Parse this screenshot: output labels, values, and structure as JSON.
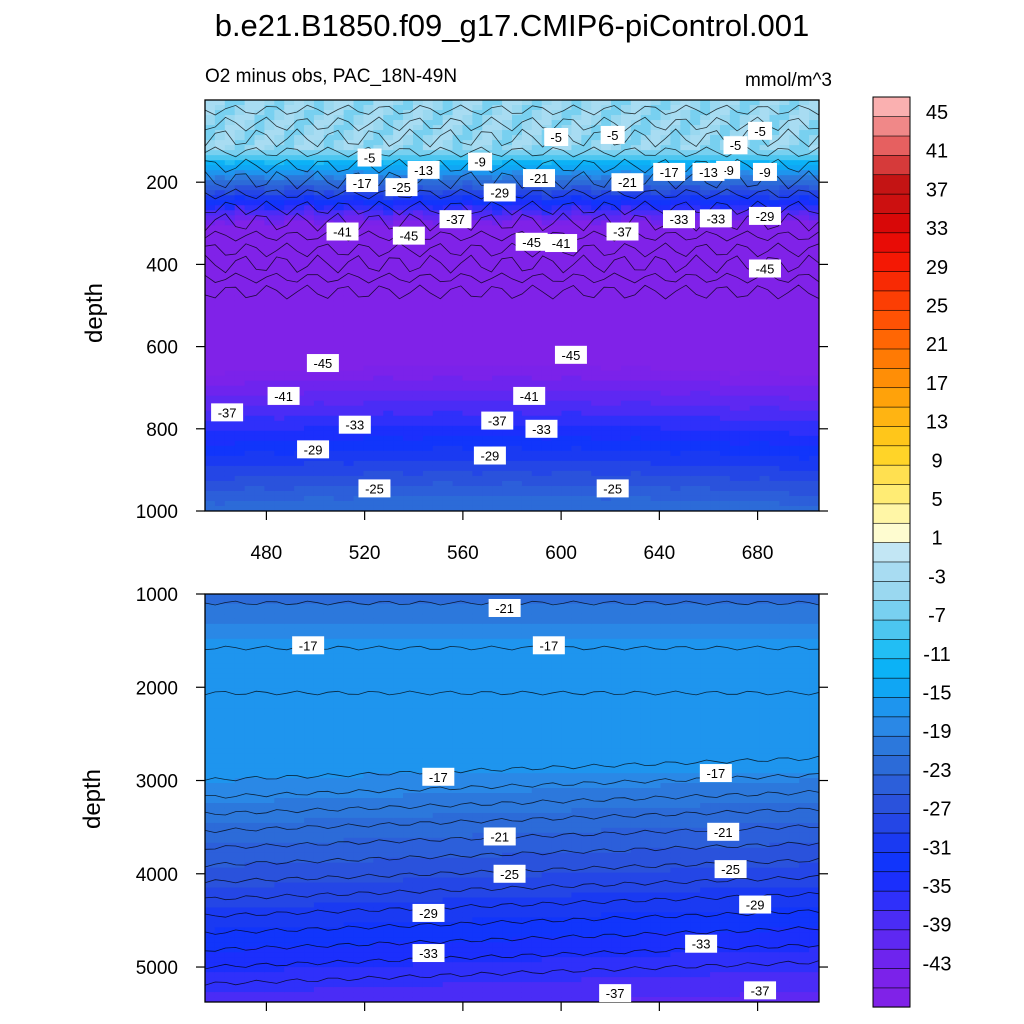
{
  "chart_data": {
    "type": "contour",
    "title": "b.e21.B1850.f09_g17.CMIP6-piControl.001",
    "subtitle_left": "O2 minus obs, PAC_18N-49N",
    "subtitle_right": "mmol/m^3",
    "x_range": [
      455,
      705
    ],
    "x_ticks": [
      480,
      520,
      560,
      600,
      640,
      680
    ],
    "panels": [
      {
        "name": "upper-ocean",
        "ylabel": "depth",
        "y_range": [
          0,
          1000
        ],
        "y_ticks": [
          200,
          400,
          600,
          800,
          1000
        ],
        "contour_labels": [
          {
            "text": "-5",
            "x": 522,
            "y": 140
          },
          {
            "text": "-5",
            "x": 598,
            "y": 90
          },
          {
            "text": "-5",
            "x": 621,
            "y": 85
          },
          {
            "text": "-5",
            "x": 671,
            "y": 110
          },
          {
            "text": "-5",
            "x": 681,
            "y": 75
          },
          {
            "text": "-9",
            "x": 567,
            "y": 150
          },
          {
            "text": "-9",
            "x": 668,
            "y": 170
          },
          {
            "text": "-9",
            "x": 683,
            "y": 175
          },
          {
            "text": "-13",
            "x": 544,
            "y": 170
          },
          {
            "text": "-13",
            "x": 660,
            "y": 175
          },
          {
            "text": "-17",
            "x": 519,
            "y": 202
          },
          {
            "text": "-17",
            "x": 644,
            "y": 175
          },
          {
            "text": "-21",
            "x": 591,
            "y": 190
          },
          {
            "text": "-21",
            "x": 627,
            "y": 200
          },
          {
            "text": "-25",
            "x": 535,
            "y": 212
          },
          {
            "text": "-29",
            "x": 575,
            "y": 225
          },
          {
            "text": "-29",
            "x": 683,
            "y": 282
          },
          {
            "text": "-33",
            "x": 648,
            "y": 290
          },
          {
            "text": "-33",
            "x": 663,
            "y": 288
          },
          {
            "text": "-37",
            "x": 557,
            "y": 290
          },
          {
            "text": "-37",
            "x": 625,
            "y": 320
          },
          {
            "text": "-41",
            "x": 511,
            "y": 320
          },
          {
            "text": "-41",
            "x": 600,
            "y": 348
          },
          {
            "text": "-45",
            "x": 538,
            "y": 330
          },
          {
            "text": "-45",
            "x": 588,
            "y": 345
          },
          {
            "text": "-45",
            "x": 683,
            "y": 410
          },
          {
            "text": "-45",
            "x": 503,
            "y": 640
          },
          {
            "text": "-45",
            "x": 604,
            "y": 620
          },
          {
            "text": "-41",
            "x": 487,
            "y": 720
          },
          {
            "text": "-41",
            "x": 587,
            "y": 720
          },
          {
            "text": "-37",
            "x": 464,
            "y": 760
          },
          {
            "text": "-37",
            "x": 574,
            "y": 780
          },
          {
            "text": "-33",
            "x": 516,
            "y": 790
          },
          {
            "text": "-33",
            "x": 592,
            "y": 800
          },
          {
            "text": "-29",
            "x": 499,
            "y": 850
          },
          {
            "text": "-29",
            "x": 571,
            "y": 865
          },
          {
            "text": "-25",
            "x": 524,
            "y": 945
          },
          {
            "text": "-25",
            "x": 621,
            "y": 945
          }
        ]
      },
      {
        "name": "deep-ocean",
        "ylabel": "depth",
        "y_range": [
          1000,
          5375
        ],
        "y_ticks": [
          1000,
          2000,
          3000,
          4000,
          5000
        ],
        "contour_labels": [
          {
            "text": "-21",
            "x": 577,
            "y": 1150
          },
          {
            "text": "-17",
            "x": 497,
            "y": 1550
          },
          {
            "text": "-17",
            "x": 595,
            "y": 1550
          },
          {
            "text": "-17",
            "x": 550,
            "y": 2960
          },
          {
            "text": "-17",
            "x": 663,
            "y": 2920
          },
          {
            "text": "-21",
            "x": 575,
            "y": 3600
          },
          {
            "text": "-21",
            "x": 666,
            "y": 3550
          },
          {
            "text": "-25",
            "x": 579,
            "y": 4000
          },
          {
            "text": "-25",
            "x": 669,
            "y": 3950
          },
          {
            "text": "-29",
            "x": 546,
            "y": 4420
          },
          {
            "text": "-29",
            "x": 679,
            "y": 4330
          },
          {
            "text": "-33",
            "x": 546,
            "y": 4850
          },
          {
            "text": "-33",
            "x": 657,
            "y": 4750
          },
          {
            "text": "-37",
            "x": 622,
            "y": 5280
          },
          {
            "text": "-37",
            "x": 681,
            "y": 5250
          }
        ]
      }
    ],
    "colorbar": {
      "levels": [
        -47,
        -45,
        -43,
        -41,
        -39,
        -37,
        -35,
        -33,
        -31,
        -29,
        -27,
        -25,
        -23,
        -21,
        -19,
        -17,
        -15,
        -13,
        -11,
        -9,
        -7,
        -5,
        -3,
        -1,
        1,
        3,
        5,
        7,
        9,
        11,
        13,
        15,
        17,
        19,
        21,
        23,
        25,
        27,
        29,
        31,
        33,
        35,
        37,
        39,
        41,
        43,
        45
      ],
      "labels": [
        "45",
        "41",
        "37",
        "33",
        "29",
        "25",
        "21",
        "17",
        "13",
        "9",
        "5",
        "1",
        "-3",
        "-7",
        "-11",
        "-15",
        "-19",
        "-23",
        "-27",
        "-31",
        "-35",
        "-39",
        "-43"
      ],
      "colors": [
        "#8022e8",
        "#7b22ea",
        "#6e24ee",
        "#5e28f2",
        "#4a2cf6",
        "#2f30fa",
        "#1b2ffc",
        "#1135fb",
        "#1a3af2",
        "#2446e6",
        "#2a52dc",
        "#2c5fda",
        "#2c6bd8",
        "#2c78dc",
        "#2a88e6",
        "#1e95ee",
        "#10a6f4",
        "#0cb2f6",
        "#22bef4",
        "#4cc6f0",
        "#78d0f0",
        "#9ad8f0",
        "#a8dcf2",
        "#c2e6f4",
        "#fefcd0",
        "#fff6a6",
        "#ffec74",
        "#ffe050",
        "#ffd428",
        "#ffc61a",
        "#ffb412",
        "#ffa20a",
        "#ff8e06",
        "#ff7a04",
        "#ff6604",
        "#ff5204",
        "#fc3e04",
        "#f82a04",
        "#f41804",
        "#e80c06",
        "#d80808",
        "#cc1010",
        "#c41414",
        "#d63a3a",
        "#e66060",
        "#f08888",
        "#fab0b0"
      ]
    }
  }
}
